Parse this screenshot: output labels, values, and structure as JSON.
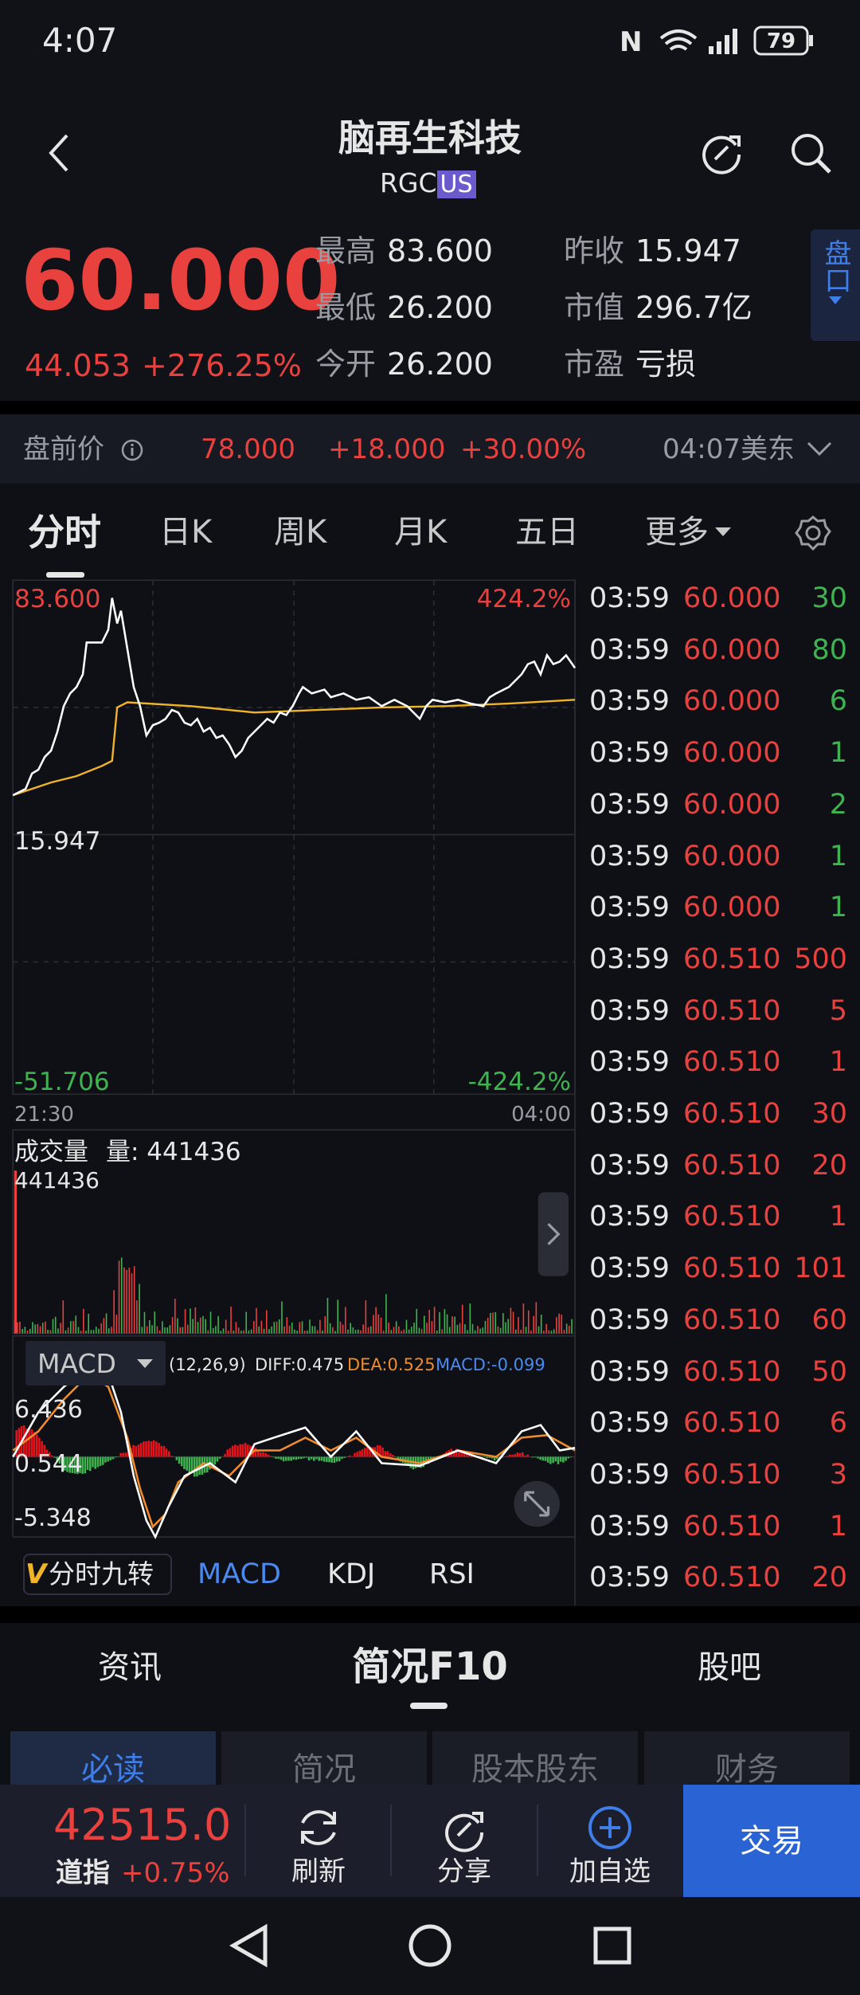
{
  "status_bar": {
    "time": "4:07",
    "battery": "79"
  },
  "header": {
    "title": "脑再生科技",
    "ticker": "RGC",
    "market": "US"
  },
  "quote": {
    "price": "60.000",
    "change": "44.053",
    "change_pct": "+276.25%",
    "stats": [
      {
        "label": "最高",
        "value": "83.600"
      },
      {
        "label": "最低",
        "value": "26.200"
      },
      {
        "label": "今开",
        "value": "26.200"
      },
      {
        "label": "昨收",
        "value": "15.947"
      },
      {
        "label": "市值",
        "value": "296.7亿"
      },
      {
        "label": "市盈",
        "value": "亏损"
      }
    ],
    "side_tab": "盘口"
  },
  "premarket": {
    "label": "盘前价",
    "price": "78.000",
    "change": "+18.000",
    "change_pct": "+30.00%",
    "time": "04:07美东"
  },
  "tabs": [
    "分时",
    "日K",
    "周K",
    "月K",
    "五日",
    "更多"
  ],
  "intraday": {
    "high": "83.600",
    "high_pct": "424.2%",
    "prev_close": "15.947",
    "low": "-51.706",
    "low_pct": "-424.2%",
    "start_time": "21:30",
    "end_time": "04:00"
  },
  "volume": {
    "title": "成交量",
    "label": "量: 441436",
    "max": "441436"
  },
  "macd": {
    "name": "MACD",
    "params": "(12,26,9)",
    "diff": "DIFF:0.475",
    "dea": "DEA:0.525",
    "macd": "MACD:-0.099",
    "top": "6.436",
    "mid": "0.544",
    "bottom": "-5.348"
  },
  "indicator_tabs": {
    "badge": "V",
    "items": [
      "分时九转",
      "MACD",
      "KDJ",
      "RSI"
    ]
  },
  "trades": [
    {
      "time": "03:59",
      "price": "60.000",
      "volume": "30",
      "color": "#3fb34f"
    },
    {
      "time": "03:59",
      "price": "60.000",
      "volume": "80",
      "color": "#3fb34f"
    },
    {
      "time": "03:59",
      "price": "60.000",
      "volume": "6",
      "color": "#3fb34f"
    },
    {
      "time": "03:59",
      "price": "60.000",
      "volume": "1",
      "color": "#3fb34f"
    },
    {
      "time": "03:59",
      "price": "60.000",
      "volume": "2",
      "color": "#3fb34f"
    },
    {
      "time": "03:59",
      "price": "60.000",
      "volume": "1",
      "color": "#3fb34f"
    },
    {
      "time": "03:59",
      "price": "60.000",
      "volume": "1",
      "color": "#3fb34f"
    },
    {
      "time": "03:59",
      "price": "60.510",
      "volume": "500",
      "color": "#e8413e"
    },
    {
      "time": "03:59",
      "price": "60.510",
      "volume": "5",
      "color": "#e8413e"
    },
    {
      "time": "03:59",
      "price": "60.510",
      "volume": "1",
      "color": "#e8413e"
    },
    {
      "time": "03:59",
      "price": "60.510",
      "volume": "30",
      "color": "#e8413e"
    },
    {
      "time": "03:59",
      "price": "60.510",
      "volume": "20",
      "color": "#e8413e"
    },
    {
      "time": "03:59",
      "price": "60.510",
      "volume": "1",
      "color": "#e8413e"
    },
    {
      "time": "03:59",
      "price": "60.510",
      "volume": "101",
      "color": "#e8413e"
    },
    {
      "time": "03:59",
      "price": "60.510",
      "volume": "60",
      "color": "#e8413e"
    },
    {
      "time": "03:59",
      "price": "60.510",
      "volume": "50",
      "color": "#e8413e"
    },
    {
      "time": "03:59",
      "price": "60.510",
      "volume": "6",
      "color": "#e8413e"
    },
    {
      "time": "03:59",
      "price": "60.510",
      "volume": "3",
      "color": "#e8413e"
    },
    {
      "time": "03:59",
      "price": "60.510",
      "volume": "1",
      "color": "#e8413e"
    },
    {
      "time": "03:59",
      "price": "60.510",
      "volume": "20",
      "color": "#e8413e"
    }
  ],
  "section_tabs": [
    "资讯",
    "简况F10",
    "股吧"
  ],
  "sub_tabs": [
    "必读",
    "简况",
    "股本股东",
    "财务"
  ],
  "bottom_bar": {
    "index_value": "42515.0",
    "index_name": "道指",
    "index_pct": "+0.75%",
    "actions": [
      "刷新",
      "分享",
      "加自选"
    ],
    "trade": "交易"
  }
}
